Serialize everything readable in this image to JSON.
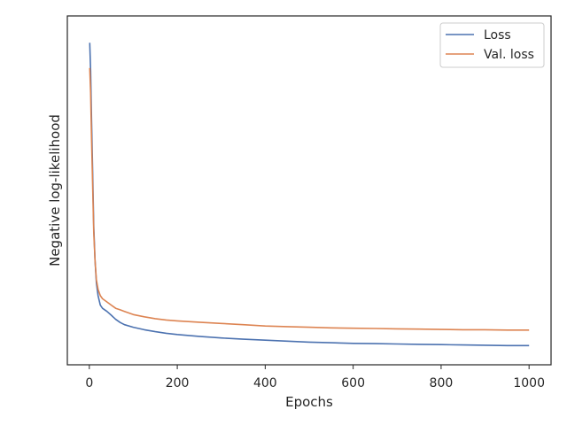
{
  "chart_data": {
    "type": "line",
    "title": "",
    "xlabel": "Epochs",
    "ylabel": "Negative log-likelihood",
    "xlim": [
      -50,
      1050
    ],
    "ylim": [
      0,
      1
    ],
    "x_ticks": [
      0,
      200,
      400,
      600,
      800,
      1000
    ],
    "y_ticks_visible": false,
    "grid": false,
    "legend_position": "top-right",
    "series": [
      {
        "name": "Loss",
        "color": "#4c72b0",
        "x": [
          1,
          3,
          5,
          8,
          10,
          13,
          16,
          20,
          25,
          30,
          40,
          50,
          60,
          70,
          80,
          100,
          125,
          150,
          175,
          200,
          250,
          300,
          350,
          400,
          450,
          500,
          550,
          600,
          650,
          700,
          750,
          800,
          850,
          900,
          950,
          1000
        ],
        "y": [
          0.96,
          0.87,
          0.72,
          0.52,
          0.38,
          0.27,
          0.2,
          0.16,
          0.13,
          0.12,
          0.11,
          0.098,
          0.085,
          0.075,
          0.068,
          0.06,
          0.052,
          0.046,
          0.041,
          0.037,
          0.031,
          0.026,
          0.022,
          0.019,
          0.016,
          0.013,
          0.011,
          0.009,
          0.008,
          0.007,
          0.006,
          0.005,
          0.004,
          0.003,
          0.002,
          0.002
        ]
      },
      {
        "name": "Val. loss",
        "color": "#dd8452",
        "x": [
          1,
          3,
          5,
          8,
          10,
          13,
          16,
          20,
          25,
          30,
          40,
          50,
          60,
          70,
          80,
          100,
          125,
          150,
          175,
          200,
          250,
          300,
          350,
          400,
          450,
          500,
          550,
          600,
          650,
          700,
          750,
          800,
          850,
          900,
          950,
          1000
        ],
        "y": [
          0.88,
          0.8,
          0.66,
          0.48,
          0.36,
          0.27,
          0.21,
          0.18,
          0.16,
          0.15,
          0.14,
          0.13,
          0.12,
          0.115,
          0.11,
          0.1,
          0.093,
          0.087,
          0.083,
          0.08,
          0.076,
          0.072,
          0.068,
          0.064,
          0.062,
          0.06,
          0.058,
          0.057,
          0.056,
          0.055,
          0.054,
          0.053,
          0.052,
          0.052,
          0.051,
          0.051
        ]
      }
    ]
  }
}
